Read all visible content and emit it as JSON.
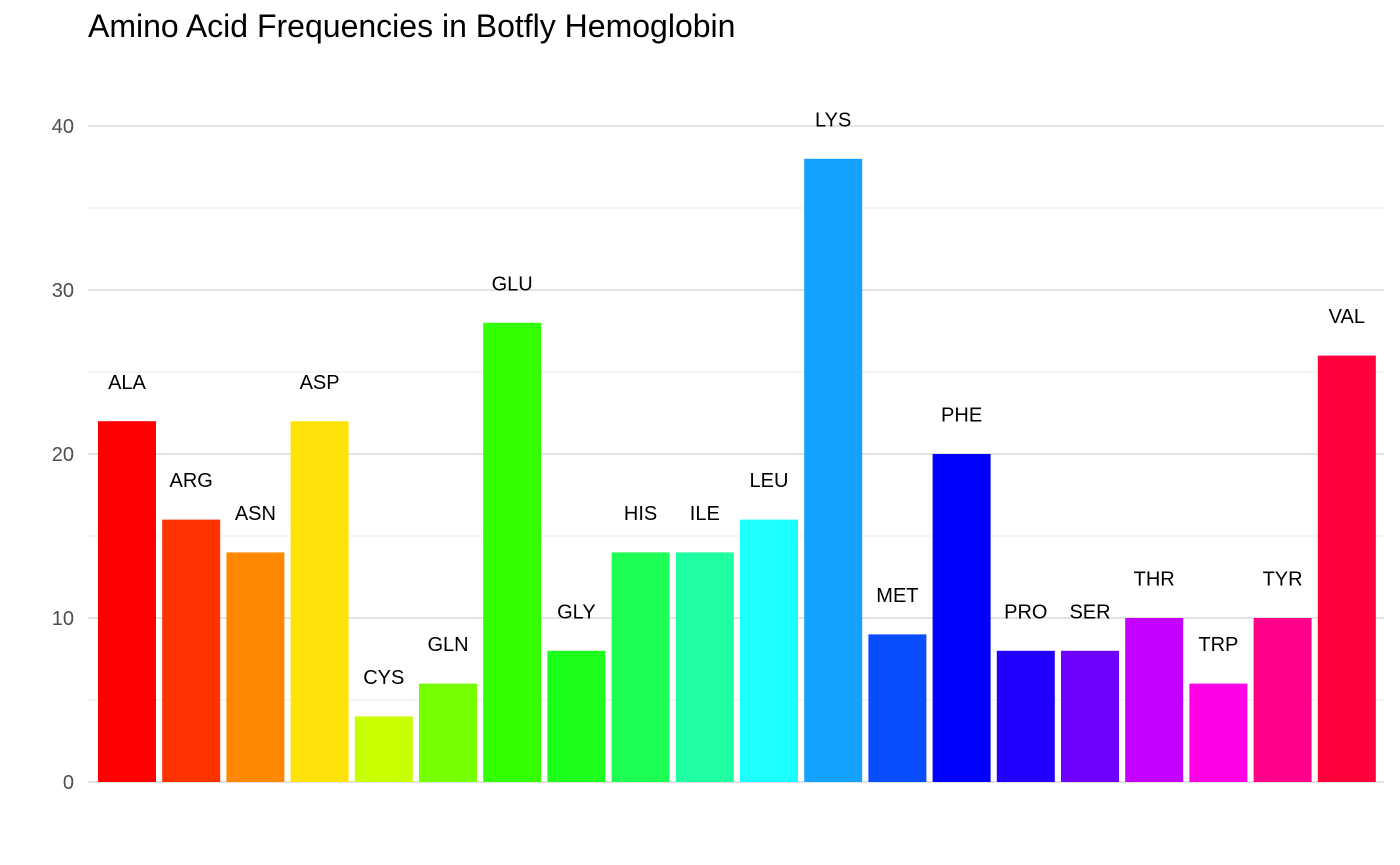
{
  "chart_data": {
    "type": "bar",
    "title": "Amino Acid Frequencies in Botfly Hemoglobin",
    "xlabel": "",
    "ylabel": "",
    "categories": [
      "ALA",
      "ARG",
      "ASN",
      "ASP",
      "CYS",
      "GLN",
      "GLU",
      "GLY",
      "HIS",
      "ILE",
      "LEU",
      "LYS",
      "MET",
      "PHE",
      "PRO",
      "SER",
      "THR",
      "TRP",
      "TYR",
      "VAL"
    ],
    "values": [
      22,
      16,
      14,
      22,
      4,
      6,
      28,
      8,
      14,
      14,
      16,
      38,
      9,
      20,
      8,
      8,
      10,
      6,
      10,
      26
    ],
    "colors": [
      "#FF0000",
      "#FF3300",
      "#FF8800",
      "#FFE20A",
      "#C8FF00",
      "#76FF00",
      "#33FF00",
      "#1BFF1B",
      "#1DFF55",
      "#1DFFA0",
      "#1DFFFF",
      "#15A2FF",
      "#0A4DFF",
      "#0000FF",
      "#2200FF",
      "#6E00FF",
      "#C400FF",
      "#FF00E6",
      "#FF0088",
      "#FF003C"
    ],
    "yticks": [
      0,
      10,
      20,
      30,
      40
    ],
    "ylim": [
      0,
      42
    ],
    "grid": true,
    "legend": "none"
  }
}
